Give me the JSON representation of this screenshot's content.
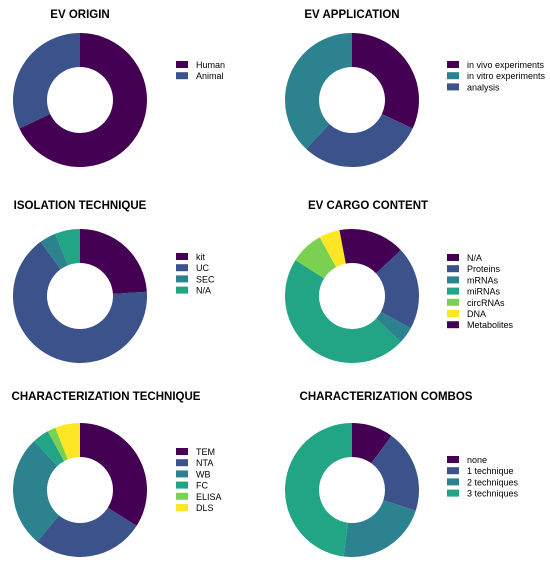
{
  "chart_data": [
    {
      "type": "pie",
      "title": "EV ORIGIN",
      "categories": [
        "Human",
        "Animal"
      ],
      "values": [
        68,
        32
      ],
      "colors": [
        "#440154",
        "#3b528b"
      ],
      "legend": "right"
    },
    {
      "type": "pie",
      "title": "EV APPLICATION",
      "categories": [
        "in vivo experiments",
        "in vitro experiments",
        "analysis"
      ],
      "values": [
        32,
        30,
        38
      ],
      "colors": [
        "#440154",
        "#3b528b",
        "#2c828e"
      ],
      "legend_colors": [
        "#440154",
        "#2c828e",
        "#3b528b"
      ],
      "legend": "right"
    },
    {
      "type": "pie",
      "title": "ISOLATION TECHNIQUE",
      "categories": [
        "kit",
        "UC",
        "SEC",
        "N/A"
      ],
      "values": [
        24,
        66,
        4,
        6
      ],
      "colors": [
        "#440154",
        "#3b528b",
        "#2c828e",
        "#21a585"
      ],
      "legend": "right"
    },
    {
      "type": "pie",
      "title": "EV CARGO CONTENT",
      "categories": [
        "N/A",
        "Proteins",
        "mRNAs",
        "miRNAs",
        "circRNAs",
        "DNA",
        "Metabolites"
      ],
      "values": [
        13,
        20,
        4,
        47,
        8,
        5,
        3
      ],
      "colors": [
        "#440154",
        "#3b528b",
        "#2c828e",
        "#21a585",
        "#7ad151",
        "#fde725",
        "#440154"
      ],
      "legend": "right"
    },
    {
      "type": "pie",
      "title": "CHARACTERIZATION TECHNIQUE",
      "categories": [
        "TEM",
        "NTA",
        "WB",
        "FC",
        "ELISA",
        "DLS"
      ],
      "values": [
        34,
        27,
        27,
        4,
        2,
        6
      ],
      "colors": [
        "#440154",
        "#3b528b",
        "#2c828e",
        "#21a585",
        "#7ad151",
        "#fde725"
      ],
      "legend": "right"
    },
    {
      "type": "pie",
      "title": "CHARACTERIZATION COMBOS",
      "categories": [
        "none",
        "1 technique",
        "2 techniques",
        "3 techniques"
      ],
      "values": [
        10,
        20,
        22,
        48
      ],
      "colors": [
        "#440154",
        "#3b528b",
        "#2c828e",
        "#21a585"
      ],
      "legend": "right"
    }
  ]
}
